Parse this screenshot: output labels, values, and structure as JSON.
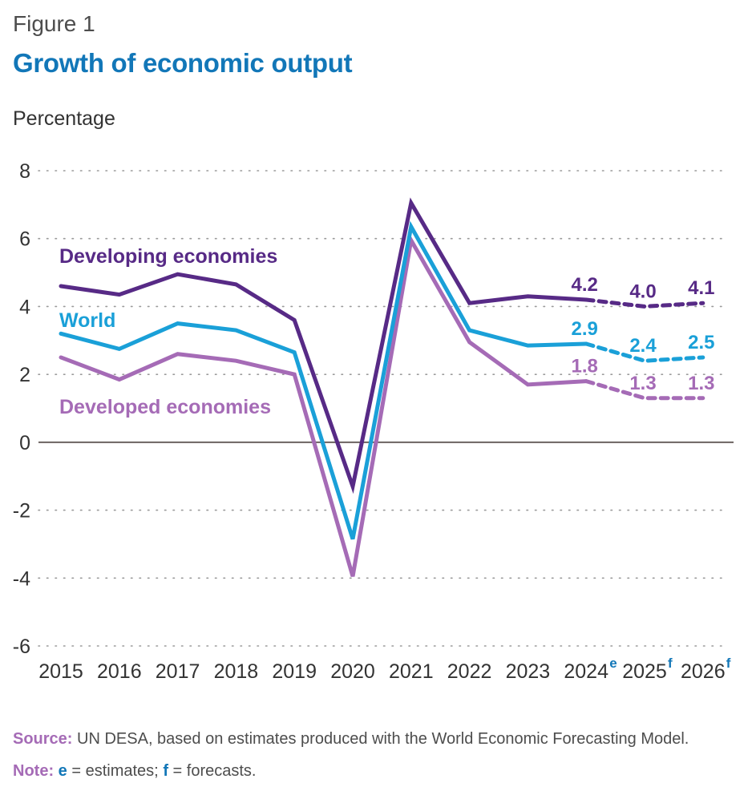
{
  "figure_label": "Figure 1",
  "title": "Growth of economic output",
  "y_unit_label": "Percentage",
  "footer": {
    "source_label": "Source:",
    "source_text": "UN DESA, based on estimates produced with the World Economic Forecasting Model.",
    "note_label": "Note:",
    "note_e_key": "e",
    "note_e_text": "= estimates;",
    "note_f_key": "f",
    "note_f_text": "= forecasts."
  },
  "chart_data": {
    "type": "line",
    "x": [
      "2015",
      "2016",
      "2017",
      "2018",
      "2019",
      "2020",
      "2021",
      "2022",
      "2023",
      "2024",
      "2025",
      "2026"
    ],
    "x_superscripts": [
      "",
      "",
      "",
      "",
      "",
      "",
      "",
      "",
      "",
      "e",
      "f",
      "f"
    ],
    "ylim": [
      -6,
      8
    ],
    "yticks": [
      -6,
      -4,
      -2,
      0,
      2,
      4,
      6,
      8
    ],
    "grid": "dotted horizontal",
    "dashed_from_index": 9,
    "series": [
      {
        "name": "Developing economies",
        "color": "#572a86",
        "values": [
          4.6,
          4.35,
          4.95,
          4.65,
          3.6,
          -1.3,
          7.05,
          4.1,
          4.3,
          4.2,
          4.0,
          4.1
        ],
        "labels": {
          "9": "4.2",
          "10": "4.0",
          "11": "4.1"
        }
      },
      {
        "name": "World",
        "color": "#1aa0d8",
        "values": [
          3.2,
          2.75,
          3.5,
          3.3,
          2.65,
          -2.85,
          6.35,
          3.3,
          2.85,
          2.9,
          2.4,
          2.5
        ],
        "labels": {
          "9": "2.9",
          "10": "2.4",
          "11": "2.5"
        }
      },
      {
        "name": "Developed economies",
        "color": "#a56bb6",
        "values": [
          2.5,
          1.85,
          2.6,
          2.4,
          2.0,
          -3.95,
          5.95,
          2.95,
          1.7,
          1.8,
          1.3,
          1.3
        ],
        "labels": {
          "9": "1.8",
          "10": "1.3",
          "11": "1.3"
        }
      }
    ]
  }
}
